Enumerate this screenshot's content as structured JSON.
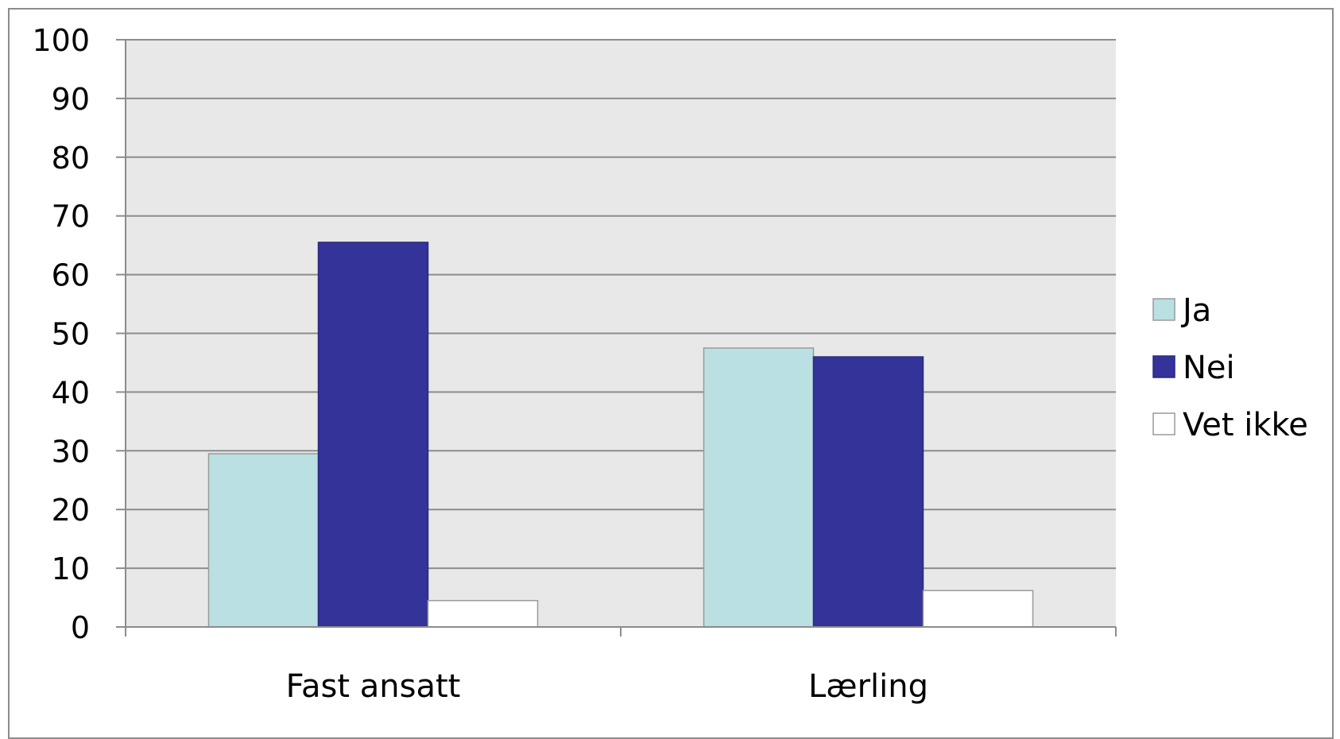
{
  "chart_data": {
    "type": "bar",
    "title": "",
    "xlabel": "",
    "ylabel": "",
    "ylim": [
      0,
      100
    ],
    "yticks": [
      0,
      10,
      20,
      30,
      40,
      50,
      60,
      70,
      80,
      90,
      100
    ],
    "grid": true,
    "legend_position": "right",
    "categories": [
      "Fast ansatt",
      "Lærling"
    ],
    "series": [
      {
        "name": "Ja",
        "values": [
          29.5,
          47.5
        ],
        "color": "#BAE0E3"
      },
      {
        "name": "Nei",
        "values": [
          65.5,
          46
        ],
        "color": "#333399"
      },
      {
        "name": "Vet ikke",
        "values": [
          4.5,
          6.2
        ],
        "color": "#FFFFFF"
      }
    ],
    "plot_background": "#E8E8E8"
  }
}
